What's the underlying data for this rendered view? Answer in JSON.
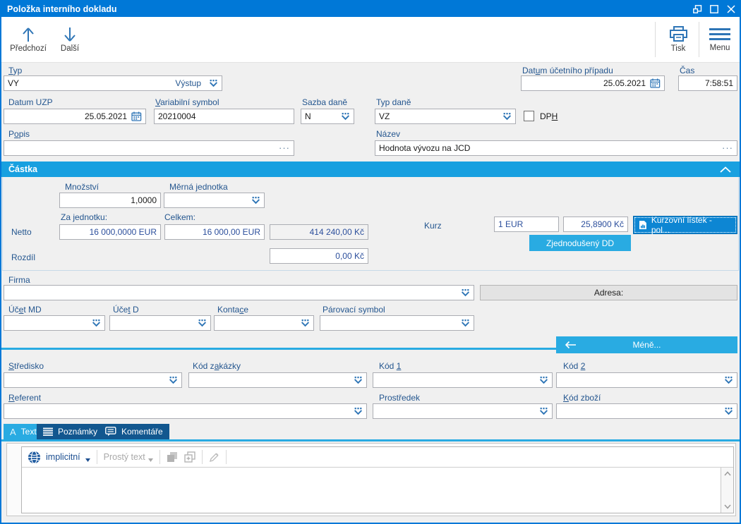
{
  "window": {
    "title": "Položka interního dokladu"
  },
  "toolbar": {
    "previous": "Předchozí",
    "next": "Další",
    "print": "Tisk",
    "menu": "Menu"
  },
  "fields": {
    "typ": {
      "label": {
        "pre": "",
        "mn": "T",
        "post": "yp"
      },
      "value": "VY",
      "display": "Výstup"
    },
    "datum_ucetniho_pripadu": {
      "label": {
        "pre": "Dat",
        "mn": "u",
        "post": "m účetního případu"
      },
      "value": "25.05.2021"
    },
    "cas": {
      "label": "Čas",
      "value": "7:58:51"
    },
    "datum_uzp": {
      "label": "Datum UZP",
      "value": "25.05.2021"
    },
    "variabilni_symbol": {
      "label": {
        "pre": "",
        "mn": "V",
        "post": "ariabilní symbol"
      },
      "value": "20210004"
    },
    "sazba_dane": {
      "label": "Sazba daně",
      "value": "N"
    },
    "typ_dane": {
      "label": "Typ daně",
      "value": "VZ"
    },
    "dph": {
      "label": {
        "pre": "DP",
        "mn": "H",
        "post": ""
      },
      "checked": false
    },
    "popis": {
      "label": {
        "pre": "P",
        "mn": "o",
        "post": "pis"
      },
      "value": "",
      "more": "···"
    },
    "nazev": {
      "label": "Název",
      "value": "Hodnota vývozu na JCD",
      "more": "···"
    }
  },
  "castka": {
    "header": "Částka",
    "mnozstvi": {
      "label": "Množství",
      "value": "1,0000"
    },
    "merna_jednotka": {
      "label": "Měrná jednotka",
      "value": ""
    },
    "za_jednotku": "Za jednotku:",
    "celkem": "Celkem:",
    "netto": {
      "label": "Netto",
      "za_jednotku": "16 000,0000 EUR",
      "celkem": "16 000,00 EUR",
      "kc": "414 240,00 Kč"
    },
    "rozdil": {
      "label": "Rozdíl",
      "value": "0,00 Kč"
    },
    "kurz": {
      "label": "Kurz",
      "mena": "1 EUR",
      "hodnota": "25,8900 Kč"
    },
    "buttons": {
      "kurzovni_listek": "Kurzovní lístek - pol...",
      "zjednoduseny_dd": "Zjednodušený DD"
    }
  },
  "firma": {
    "label": "Firma",
    "value": "",
    "adresa": "Adresa:",
    "ucet_md": {
      "pre": "Úč",
      "mn": "e",
      "post": "t MD"
    },
    "ucet_d": {
      "pre": "Úče",
      "mn": "t",
      "post": " D"
    },
    "kontace": {
      "pre": "Konta",
      "mn": "c",
      "post": "e"
    },
    "parovaci_symbol": "Párovací symbol",
    "mene": "Méně..."
  },
  "rozsirene": {
    "stredisko": {
      "pre": "",
      "mn": "S",
      "post": "tředisko"
    },
    "kod_zakazky": {
      "pre": "Kód z",
      "mn": "a",
      "post": "kázky"
    },
    "kod_1": {
      "pre": "Kód ",
      "mn": "1",
      "post": ""
    },
    "kod_2": {
      "pre": "Kód ",
      "mn": "2",
      "post": ""
    },
    "referent": {
      "pre": "",
      "mn": "R",
      "post": "eferent"
    },
    "prostredek": "Prostředek",
    "kod_zbozi": {
      "pre": "",
      "mn": "K",
      "post": "ód zboží"
    }
  },
  "tabs": {
    "text": "Text",
    "poznamky": "Poznámky",
    "komentare": "Komentáře"
  },
  "editor": {
    "language": "implicitní",
    "format": "Prostý text",
    "content": ""
  },
  "colors": {
    "titlebar": "#0078d7",
    "section_header": "#18a0e0",
    "accent_cyan": "#29abe2",
    "dark_tab": "#12578f",
    "primary_button": "#0d86d3",
    "label": "#24568f",
    "amount": "#2c4f9c",
    "icon_blue": "#2e75b6"
  }
}
